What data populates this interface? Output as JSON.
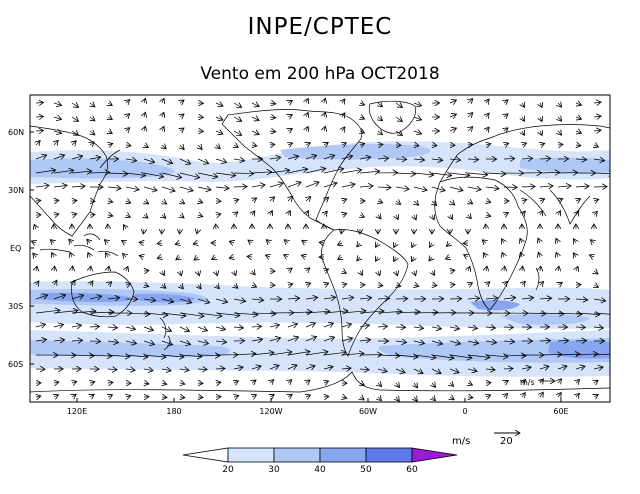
{
  "header": {
    "org": "INPE/CPTEC",
    "title": "Vento em 200 hPa OCT2018"
  },
  "map": {
    "lat_labels": [
      "60N",
      "30N",
      "EQ",
      "30S",
      "60S"
    ],
    "lon_labels": [
      "120E",
      "180",
      "120W",
      "60W",
      "0",
      "60E"
    ],
    "vector_ref_label": "m/s"
  },
  "colorbar": {
    "unit": "m/s",
    "levels": [
      "20",
      "30",
      "40",
      "50",
      "60"
    ],
    "colors": [
      "#ffffff",
      "#d6e4fb",
      "#b0c8f5",
      "#88a6ef",
      "#5e78ea",
      "#9a1ad6"
    ]
  },
  "legend": {
    "unit": "m/s",
    "ref_value": "20"
  }
}
